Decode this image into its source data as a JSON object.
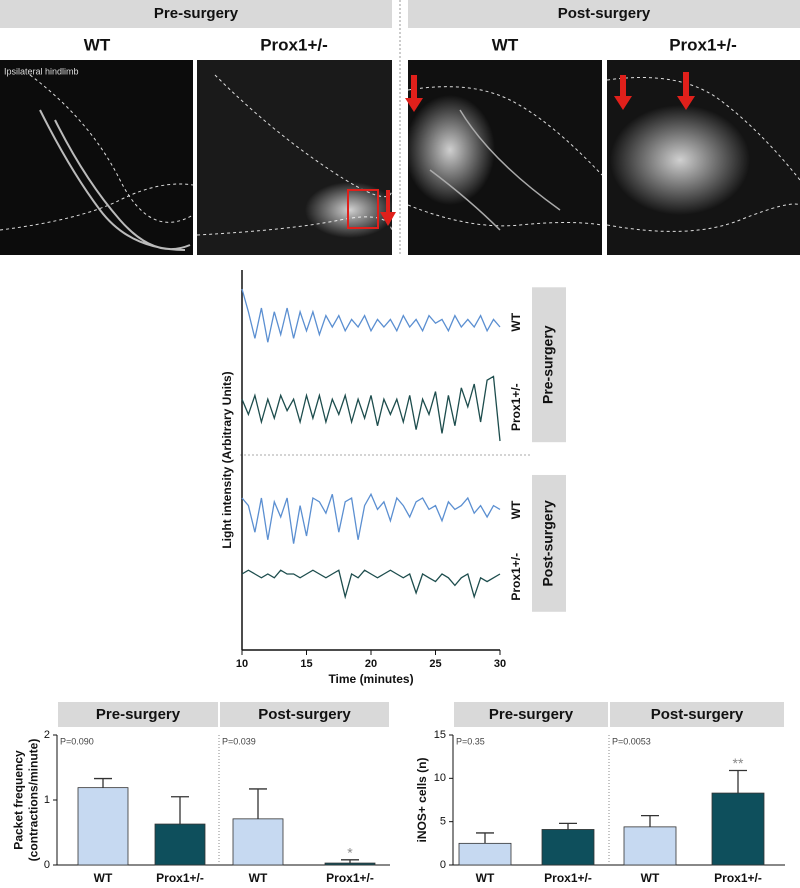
{
  "image_panels": {
    "groups": [
      "Pre-surgery",
      "Post-surgery"
    ],
    "columns": [
      "WT",
      "Prox1+/-",
      "WT",
      "Prox1+/-"
    ],
    "caption": "Ipsilateral hindlimb"
  },
  "chart_data": [
    {
      "type": "line",
      "xlabel": "Time (minutes)",
      "ylabel": "Light intensity (Arbitrary Units)",
      "xlim": [
        10,
        30
      ],
      "xticks": [
        10,
        15,
        20,
        25,
        30
      ],
      "ylim": [
        0,
        100
      ],
      "x": [
        10,
        10.5,
        11,
        11.5,
        12,
        12.5,
        13,
        13.5,
        14,
        14.5,
        15,
        15.5,
        16,
        16.5,
        17,
        17.5,
        18,
        18.5,
        19,
        19.5,
        20,
        20.5,
        21,
        21.5,
        22,
        22.5,
        23,
        23.5,
        24,
        24.5,
        25,
        25.5,
        26,
        26.5,
        27,
        27.5,
        28,
        28.5,
        29,
        29.5,
        30
      ],
      "series": [
        {
          "name": "WT",
          "group": "Pre-surgery",
          "color": "#5b8fd1",
          "values": [
            95,
            89,
            82,
            90,
            81,
            89,
            83,
            90,
            82,
            89,
            84,
            89,
            83,
            88,
            85,
            88,
            84,
            87,
            85,
            88,
            84,
            87,
            85,
            87,
            84,
            88,
            85,
            87,
            84,
            88,
            86,
            87,
            84,
            88,
            85,
            87,
            85,
            88,
            84,
            87,
            85
          ]
        },
        {
          "name": "Prox1+/-",
          "group": "Pre-surgery",
          "color": "#1d4d4d",
          "values": [
            66,
            62,
            67,
            60,
            66,
            61,
            67,
            63,
            66,
            60,
            67,
            61,
            67,
            60,
            66,
            62,
            67,
            60,
            66,
            61,
            67,
            59,
            66,
            62,
            66,
            60,
            67,
            58,
            66,
            62,
            68,
            57,
            67,
            59,
            69,
            64,
            70,
            60,
            71,
            72,
            55
          ]
        },
        {
          "name": "WT",
          "group": "Post-surgery",
          "color": "#5b8fd1",
          "values": [
            40,
            38,
            31,
            40,
            29,
            39,
            35,
            40,
            28,
            38,
            30,
            40,
            39,
            36,
            41,
            31,
            39,
            40,
            29,
            38,
            41,
            37,
            39,
            34,
            40,
            38,
            35,
            39,
            40,
            37,
            38,
            34,
            39,
            37,
            38,
            40,
            36,
            38,
            35,
            38,
            37
          ]
        },
        {
          "name": "Prox1+/-",
          "group": "Post-surgery",
          "color": "#1d4d4d",
          "values": [
            20,
            21,
            20,
            19,
            20,
            19,
            21,
            20,
            20,
            19,
            20,
            21,
            20,
            19,
            20,
            21,
            14,
            20,
            19,
            21,
            20,
            19,
            20,
            21,
            20,
            19,
            20,
            15,
            20,
            19,
            18,
            20,
            19,
            17,
            19,
            20,
            14,
            19,
            18,
            19,
            20
          ]
        }
      ]
    },
    {
      "type": "bar",
      "ylabel": [
        "Packet frequency",
        "(contractions/minute)"
      ],
      "ylim": [
        0,
        2
      ],
      "yticks": [
        0,
        1,
        2
      ],
      "groups": [
        {
          "name": "Pre-surgery",
          "p": "P=0.090"
        },
        {
          "name": "Post-surgery",
          "p": "P=0.039"
        }
      ],
      "categories": [
        "WT",
        "Prox1+/-",
        "WT",
        "Prox1+/-"
      ],
      "values": [
        1.19,
        0.63,
        0.71,
        0.03
      ],
      "errors": [
        0.14,
        0.42,
        0.46,
        0.05
      ],
      "colors": [
        "#c6d9f1",
        "#0e4f5c",
        "#c6d9f1",
        "#0e4f5c"
      ],
      "marks": {
        "3": "*"
      }
    },
    {
      "type": "bar",
      "ylabel": [
        "iNOS+ cells (n)"
      ],
      "ylim": [
        0,
        15
      ],
      "yticks": [
        0,
        5,
        10,
        15
      ],
      "groups": [
        {
          "name": "Pre-surgery",
          "p": "P=0.35"
        },
        {
          "name": "Post-surgery",
          "p": "P=0.0053"
        }
      ],
      "categories": [
        "WT",
        "Prox1+/-",
        "WT",
        "Prox1+/-"
      ],
      "values": [
        2.5,
        4.1,
        4.4,
        8.3
      ],
      "errors": [
        1.2,
        0.7,
        1.3,
        2.6
      ],
      "colors": [
        "#c6d9f1",
        "#0e4f5c",
        "#c6d9f1",
        "#0e4f5c"
      ],
      "marks": {
        "3": "**"
      }
    }
  ]
}
